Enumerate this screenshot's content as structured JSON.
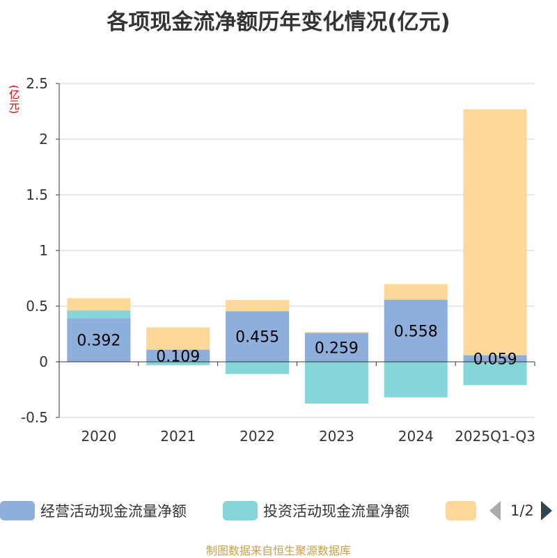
{
  "chart_data": {
    "type": "bar",
    "stacked": true,
    "title": "各项现金流净额历年变化情况(亿元)",
    "y_unit": "(亿元)",
    "categories": [
      "2020",
      "2021",
      "2022",
      "2023",
      "2024",
      "2025Q1-Q3"
    ],
    "ylim": [
      -0.5,
      2.5
    ],
    "yticks": [
      -0.5,
      0,
      0.5,
      1,
      1.5,
      2,
      2.5
    ],
    "ytick_labels": [
      "-0.5",
      "0",
      "0.5",
      "1",
      "1.5",
      "2",
      "2.5"
    ],
    "grid": true,
    "series": [
      {
        "name": "经营活动现金流量净额",
        "color": "#8eaedb",
        "values": [
          0.392,
          0.109,
          0.455,
          0.259,
          0.558,
          0.059
        ],
        "labels": [
          "0.392",
          "0.109",
          "0.455",
          "0.259",
          "0.558",
          "0.059"
        ]
      },
      {
        "name": "投资活动现金流量净额",
        "color": "#86d5d8",
        "values": [
          0.07,
          -0.03,
          -0.11,
          -0.375,
          -0.32,
          -0.21
        ]
      },
      {
        "color": "#fdd999",
        "values": [
          0.11,
          0.2,
          0.1,
          0.01,
          0.14,
          2.21
        ]
      }
    ]
  },
  "legend": {
    "page_text": "1/2"
  },
  "source_text": "制图数据来自恒生聚源数据库"
}
